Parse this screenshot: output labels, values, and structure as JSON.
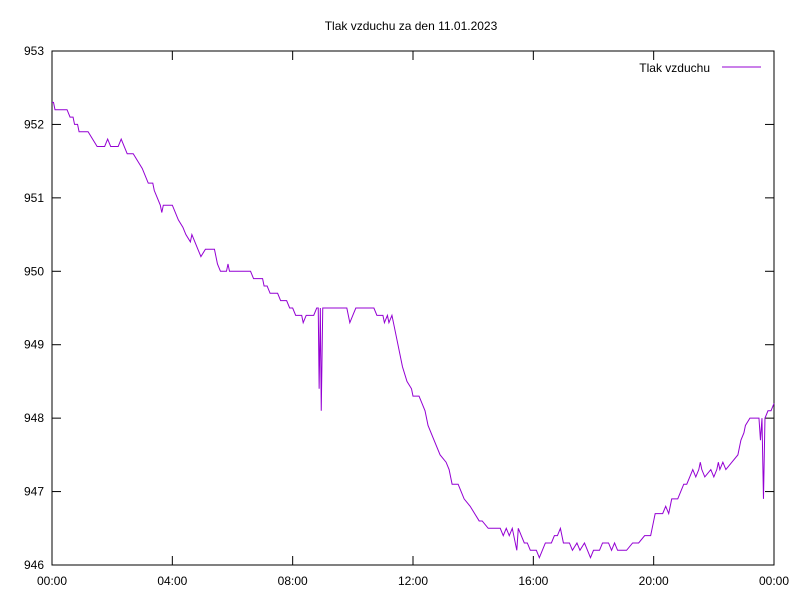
{
  "chart_data": {
    "type": "line",
    "title": "Tlak vzduchu za den 11.01.2023",
    "xlabel": "",
    "ylabel": "",
    "x_unit": "hours",
    "xlim": [
      0,
      24
    ],
    "ylim": [
      946,
      953
    ],
    "x_ticks": [
      {
        "value": 0,
        "label": "00:00"
      },
      {
        "value": 4,
        "label": "04:00"
      },
      {
        "value": 8,
        "label": "08:00"
      },
      {
        "value": 12,
        "label": "12:00"
      },
      {
        "value": 16,
        "label": "16:00"
      },
      {
        "value": 20,
        "label": "20:00"
      },
      {
        "value": 24,
        "label": "00:00"
      }
    ],
    "y_ticks": [
      {
        "value": 946,
        "label": "946"
      },
      {
        "value": 947,
        "label": "947"
      },
      {
        "value": 948,
        "label": "948"
      },
      {
        "value": 949,
        "label": "949"
      },
      {
        "value": 950,
        "label": "950"
      },
      {
        "value": 951,
        "label": "951"
      },
      {
        "value": 952,
        "label": "952"
      },
      {
        "value": 953,
        "label": "953"
      }
    ],
    "grid": false,
    "legend_position": "top-right",
    "series": [
      {
        "name": "Tlak vzduchu",
        "color": "#9400d3",
        "points": [
          [
            0.0,
            952.3
          ],
          [
            0.05,
            952.3
          ],
          [
            0.1,
            952.2
          ],
          [
            0.5,
            952.2
          ],
          [
            0.6,
            952.1
          ],
          [
            0.7,
            952.1
          ],
          [
            0.75,
            952.0
          ],
          [
            0.85,
            952.0
          ],
          [
            0.9,
            951.9
          ],
          [
            1.2,
            951.9
          ],
          [
            1.35,
            951.8
          ],
          [
            1.5,
            951.7
          ],
          [
            1.75,
            951.7
          ],
          [
            1.85,
            951.8
          ],
          [
            1.95,
            951.7
          ],
          [
            2.2,
            951.7
          ],
          [
            2.3,
            951.8
          ],
          [
            2.4,
            951.7
          ],
          [
            2.5,
            951.6
          ],
          [
            2.7,
            951.6
          ],
          [
            2.85,
            951.5
          ],
          [
            3.0,
            951.4
          ],
          [
            3.2,
            951.2
          ],
          [
            3.35,
            951.2
          ],
          [
            3.4,
            951.1
          ],
          [
            3.5,
            951.0
          ],
          [
            3.6,
            950.9
          ],
          [
            3.65,
            950.8
          ],
          [
            3.7,
            950.9
          ],
          [
            4.0,
            950.9
          ],
          [
            4.1,
            950.8
          ],
          [
            4.2,
            950.7
          ],
          [
            4.35,
            950.6
          ],
          [
            4.45,
            950.5
          ],
          [
            4.6,
            950.4
          ],
          [
            4.65,
            950.5
          ],
          [
            4.75,
            950.4
          ],
          [
            4.85,
            950.3
          ],
          [
            4.95,
            950.2
          ],
          [
            5.1,
            950.3
          ],
          [
            5.4,
            950.3
          ],
          [
            5.5,
            950.1
          ],
          [
            5.6,
            950.0
          ],
          [
            5.8,
            950.0
          ],
          [
            5.85,
            950.1
          ],
          [
            5.9,
            950.0
          ],
          [
            6.6,
            950.0
          ],
          [
            6.7,
            949.9
          ],
          [
            7.0,
            949.9
          ],
          [
            7.05,
            949.8
          ],
          [
            7.15,
            949.8
          ],
          [
            7.25,
            949.7
          ],
          [
            7.5,
            949.7
          ],
          [
            7.6,
            949.6
          ],
          [
            7.8,
            949.6
          ],
          [
            7.9,
            949.5
          ],
          [
            8.0,
            949.5
          ],
          [
            8.1,
            949.4
          ],
          [
            8.3,
            949.4
          ],
          [
            8.35,
            949.3
          ],
          [
            8.45,
            949.4
          ],
          [
            8.7,
            949.4
          ],
          [
            8.8,
            949.5
          ],
          [
            8.85,
            949.5
          ],
          [
            8.88,
            948.4
          ],
          [
            8.92,
            949.5
          ],
          [
            8.95,
            948.1
          ],
          [
            9.0,
            949.5
          ],
          [
            9.8,
            949.5
          ],
          [
            9.9,
            949.3
          ],
          [
            10.0,
            949.4
          ],
          [
            10.1,
            949.5
          ],
          [
            10.7,
            949.5
          ],
          [
            10.8,
            949.4
          ],
          [
            11.0,
            949.4
          ],
          [
            11.05,
            949.3
          ],
          [
            11.15,
            949.4
          ],
          [
            11.2,
            949.3
          ],
          [
            11.3,
            949.4
          ],
          [
            11.35,
            949.3
          ],
          [
            11.5,
            949.0
          ],
          [
            11.65,
            948.7
          ],
          [
            11.8,
            948.5
          ],
          [
            11.95,
            948.4
          ],
          [
            12.0,
            948.3
          ],
          [
            12.2,
            948.3
          ],
          [
            12.3,
            948.2
          ],
          [
            12.4,
            948.1
          ],
          [
            12.5,
            947.9
          ],
          [
            12.7,
            947.7
          ],
          [
            12.9,
            947.5
          ],
          [
            13.1,
            947.4
          ],
          [
            13.2,
            947.3
          ],
          [
            13.3,
            947.1
          ],
          [
            13.5,
            947.1
          ],
          [
            13.6,
            947.0
          ],
          [
            13.7,
            946.9
          ],
          [
            13.9,
            946.8
          ],
          [
            14.05,
            946.7
          ],
          [
            14.2,
            946.6
          ],
          [
            14.3,
            946.6
          ],
          [
            14.5,
            946.5
          ],
          [
            14.9,
            946.5
          ],
          [
            15.0,
            946.4
          ],
          [
            15.1,
            946.5
          ],
          [
            15.2,
            946.4
          ],
          [
            15.3,
            946.5
          ],
          [
            15.45,
            946.2
          ],
          [
            15.5,
            946.5
          ],
          [
            15.6,
            946.4
          ],
          [
            15.7,
            946.3
          ],
          [
            15.8,
            946.3
          ],
          [
            15.9,
            946.2
          ],
          [
            16.1,
            946.2
          ],
          [
            16.2,
            946.1
          ],
          [
            16.3,
            946.2
          ],
          [
            16.4,
            946.3
          ],
          [
            16.6,
            946.3
          ],
          [
            16.7,
            946.4
          ],
          [
            16.8,
            946.4
          ],
          [
            16.9,
            946.5
          ],
          [
            17.0,
            946.3
          ],
          [
            17.2,
            946.3
          ],
          [
            17.3,
            946.2
          ],
          [
            17.45,
            946.3
          ],
          [
            17.55,
            946.2
          ],
          [
            17.7,
            946.3
          ],
          [
            17.8,
            946.2
          ],
          [
            17.9,
            946.1
          ],
          [
            18.0,
            946.2
          ],
          [
            18.2,
            946.2
          ],
          [
            18.3,
            946.3
          ],
          [
            18.5,
            946.3
          ],
          [
            18.6,
            946.2
          ],
          [
            18.7,
            946.3
          ],
          [
            18.8,
            946.2
          ],
          [
            19.1,
            946.2
          ],
          [
            19.3,
            946.3
          ],
          [
            19.5,
            946.3
          ],
          [
            19.7,
            946.4
          ],
          [
            19.9,
            946.4
          ],
          [
            20.0,
            946.6
          ],
          [
            20.05,
            946.7
          ],
          [
            20.3,
            946.7
          ],
          [
            20.4,
            946.8
          ],
          [
            20.5,
            946.7
          ],
          [
            20.6,
            946.9
          ],
          [
            20.8,
            946.9
          ],
          [
            20.9,
            947.0
          ],
          [
            21.0,
            947.1
          ],
          [
            21.1,
            947.1
          ],
          [
            21.2,
            947.2
          ],
          [
            21.3,
            947.3
          ],
          [
            21.4,
            947.2
          ],
          [
            21.5,
            947.3
          ],
          [
            21.55,
            947.4
          ],
          [
            21.6,
            947.3
          ],
          [
            21.7,
            947.2
          ],
          [
            21.9,
            947.3
          ],
          [
            22.0,
            947.2
          ],
          [
            22.1,
            947.3
          ],
          [
            22.15,
            947.4
          ],
          [
            22.2,
            947.3
          ],
          [
            22.3,
            947.4
          ],
          [
            22.4,
            947.3
          ],
          [
            22.6,
            947.4
          ],
          [
            22.8,
            947.5
          ],
          [
            22.9,
            947.7
          ],
          [
            23.0,
            947.8
          ],
          [
            23.05,
            947.9
          ],
          [
            23.2,
            948.0
          ],
          [
            23.5,
            948.0
          ],
          [
            23.55,
            947.7
          ],
          [
            23.6,
            948.0
          ],
          [
            23.65,
            946.9
          ],
          [
            23.7,
            948.0
          ],
          [
            23.8,
            948.1
          ],
          [
            23.9,
            948.1
          ],
          [
            24.0,
            948.2
          ]
        ]
      }
    ]
  }
}
